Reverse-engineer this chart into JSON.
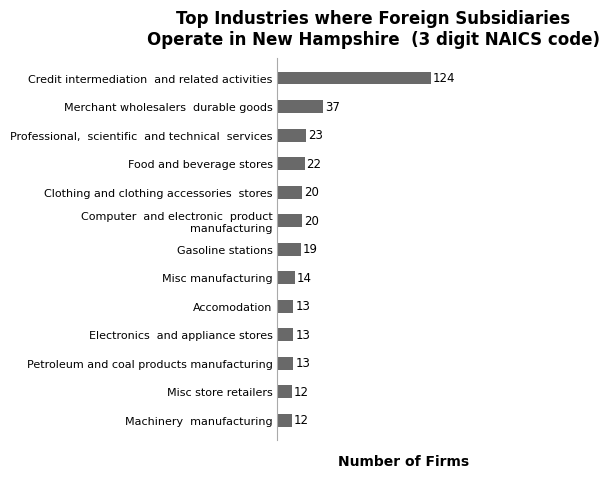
{
  "title": "Top Industries where Foreign Subsidiaries\nOperate in New Hampshire  (3 digit NAICS code)",
  "categories": [
    "Machinery  manufacturing",
    "Misc store retailers",
    "Petroleum and coal products manufacturing",
    "Electronics  and appliance stores",
    "Accomodation",
    "Misc manufacturing",
    "Gasoline stations",
    "Computer  and electronic  product\nmanufacturing",
    "Clothing and clothing accessories  stores",
    "Food and beverage stores",
    "Professional,  scientific  and technical  services",
    "Merchant wholesalers  durable goods",
    "Credit intermediation  and related activities"
  ],
  "values": [
    12,
    12,
    13,
    13,
    13,
    14,
    19,
    20,
    20,
    22,
    23,
    37,
    124
  ],
  "bar_color": "#696969",
  "xlabel": "Number of Firms",
  "title_fontsize": 12,
  "label_fontsize": 8,
  "value_fontsize": 8.5,
  "xlabel_fontsize": 10,
  "xlim": [
    0,
    155
  ],
  "background_color": "#ffffff"
}
